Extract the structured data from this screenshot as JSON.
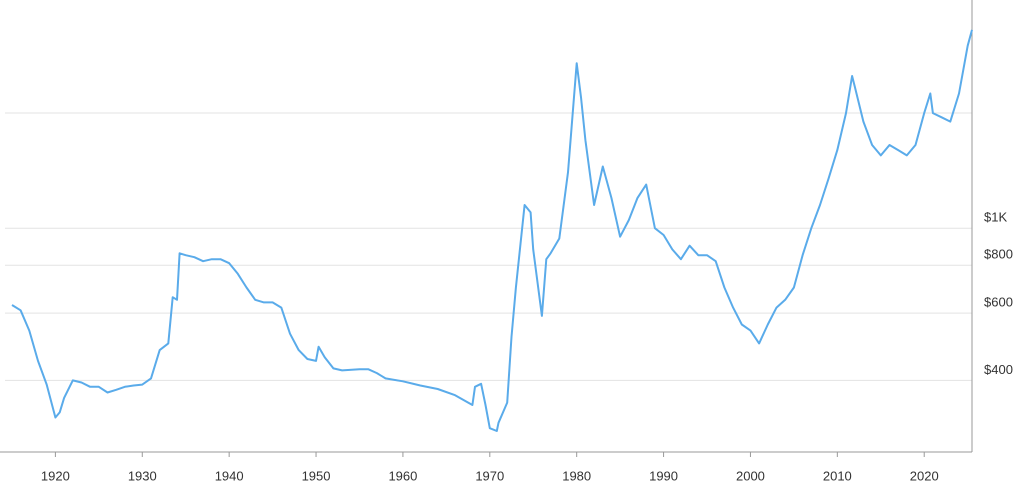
{
  "chart_data": {
    "type": "line",
    "log_y": true,
    "grid": true,
    "color": "#5aabea",
    "x": [
      1915,
      1916,
      1917,
      1918,
      1919,
      1920,
      1920.5,
      1921,
      1922,
      1923,
      1924,
      1925,
      1926,
      1927,
      1928,
      1929,
      1930,
      1931,
      1932,
      1933,
      1933.5,
      1934,
      1934.3,
      1935,
      1936,
      1937,
      1938,
      1939,
      1940,
      1941,
      1942,
      1943,
      1944,
      1945,
      1946,
      1947,
      1948,
      1949,
      1950,
      1950.3,
      1951,
      1952,
      1953,
      1955,
      1956,
      1957,
      1958,
      1960,
      1962,
      1964,
      1966,
      1968,
      1968.3,
      1969,
      1969.5,
      1970,
      1970.8,
      1971,
      1972,
      1972.5,
      1973,
      1974,
      1974.7,
      1975,
      1976,
      1976.5,
      1977,
      1978,
      1979,
      1980,
      1980.5,
      1981,
      1982,
      1983,
      1984,
      1985,
      1986,
      1987,
      1988,
      1989,
      1990,
      1991,
      1992,
      1993,
      1994,
      1995,
      1996,
      1997,
      1998,
      1999,
      2000,
      2001,
      2002,
      2003,
      2004,
      2005,
      2006,
      2007,
      2008,
      2009,
      2010,
      2011,
      2011.7,
      2012,
      2013,
      2014,
      2015,
      2016,
      2017,
      2018,
      2019,
      2020,
      2020.7,
      2021,
      2022,
      2023,
      2024,
      2025,
      2025.5
    ],
    "values": [
      630,
      610,
      540,
      450,
      390,
      320,
      330,
      360,
      400,
      395,
      385,
      385,
      372,
      378,
      385,
      388,
      390,
      405,
      480,
      500,
      660,
      650,
      860,
      850,
      840,
      820,
      830,
      830,
      810,
      760,
      700,
      650,
      640,
      640,
      620,
      530,
      480,
      455,
      450,
      490,
      460,
      430,
      425,
      428,
      428,
      418,
      405,
      398,
      388,
      380,
      366,
      345,
      385,
      392,
      345,
      300,
      295,
      310,
      350,
      520,
      700,
      1150,
      1100,
      880,
      590,
      830,
      860,
      940,
      1400,
      2700,
      2200,
      1700,
      1150,
      1450,
      1200,
      950,
      1050,
      1200,
      1300,
      1000,
      960,
      880,
      830,
      900,
      850,
      850,
      820,
      700,
      620,
      560,
      540,
      500,
      560,
      620,
      650,
      700,
      850,
      1000,
      1150,
      1350,
      1600,
      2000,
      2500,
      2350,
      1900,
      1650,
      1550,
      1650,
      1600,
      1550,
      1650,
      2000,
      2250,
      2000,
      1950,
      1900,
      2250,
      3000,
      3300
    ],
    "xlim": [
      1914.2,
      2025.5
    ],
    "xticks": [
      1920,
      1930,
      1940,
      1950,
      1960,
      1970,
      1980,
      1990,
      2000,
      2010,
      2020
    ],
    "ylim": [
      260,
      3950
    ],
    "yticks": [
      {
        "value": 400,
        "label": "$400"
      },
      {
        "value": 600,
        "label": "$600"
      },
      {
        "value": 800,
        "label": "$800"
      },
      {
        "value": 1000,
        "label": "$1K"
      },
      {
        "value": 2000,
        "label": null
      }
    ]
  }
}
